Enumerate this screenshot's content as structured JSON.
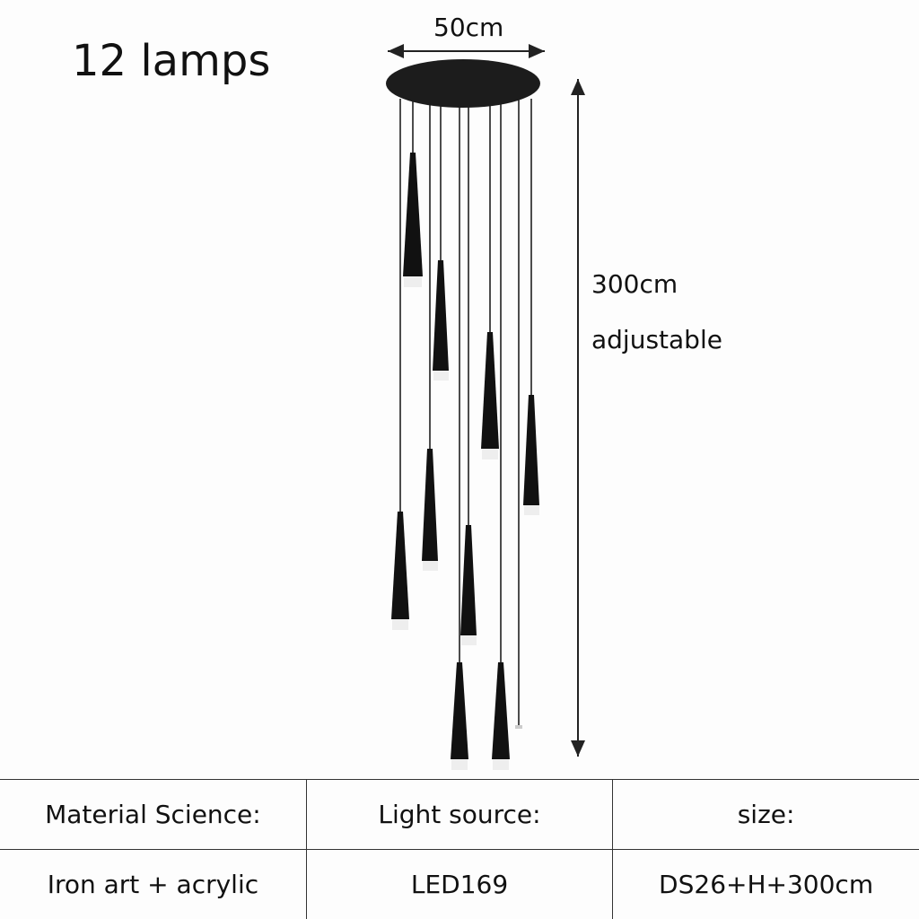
{
  "header": {
    "title": "12 lamps"
  },
  "dimensions": {
    "width": "50cm",
    "height": "300cm",
    "note": "adjustable"
  },
  "table": {
    "headers": [
      "Material Science:",
      "Light source:",
      "size:"
    ],
    "rows": [
      [
        "Iron art + acrylic",
        "LED169",
        "DS26+H+300cm"
      ]
    ]
  }
}
